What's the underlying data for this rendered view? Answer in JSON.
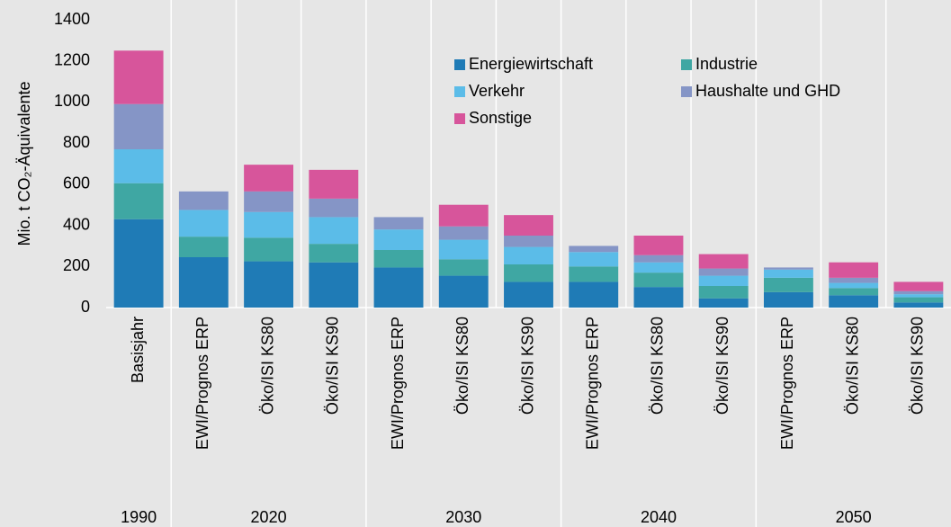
{
  "chart_data": {
    "type": "stacked_bar",
    "ylabel": "Mio. t CO₂-Äquivalente",
    "ylim": [
      0,
      1400
    ],
    "yticks": [
      0,
      200,
      400,
      600,
      800,
      1000,
      1200,
      1400
    ],
    "groups": [
      {
        "label": "1990",
        "categories": [
          "Basisjahr"
        ]
      },
      {
        "label": "2020",
        "categories": [
          "EWI/Prognos ERP",
          "Öko/ISI KS80",
          "Öko/ISI KS90"
        ]
      },
      {
        "label": "2030",
        "categories": [
          "EWI/Prognos ERP",
          "Öko/ISI KS80",
          "Öko/ISI KS90"
        ]
      },
      {
        "label": "2040",
        "categories": [
          "EWI/Prognos ERP",
          "Öko/ISI KS80",
          "Öko/ISI KS90"
        ]
      },
      {
        "label": "2050",
        "categories": [
          "EWI/Prognos ERP",
          "Öko/ISI KS80",
          "Öko/ISI KS90"
        ]
      }
    ],
    "series": [
      {
        "name": "Energiewirtschaft",
        "color": "#1f7bb6",
        "values": [
          430,
          245,
          225,
          220,
          195,
          155,
          125,
          125,
          100,
          45,
          75,
          60,
          25
        ]
      },
      {
        "name": "Industrie",
        "color": "#3fa7a3",
        "values": [
          175,
          100,
          115,
          90,
          85,
          80,
          85,
          75,
          70,
          60,
          70,
          35,
          25
        ]
      },
      {
        "name": "Verkehr",
        "color": "#5bbce8",
        "values": [
          165,
          130,
          125,
          130,
          100,
          95,
          85,
          70,
          50,
          50,
          40,
          25,
          15
        ]
      },
      {
        "name": "Haushalte und GHD",
        "color": "#8595c6",
        "values": [
          220,
          90,
          100,
          90,
          60,
          65,
          55,
          30,
          35,
          35,
          10,
          25,
          15
        ]
      },
      {
        "name": "Sonstige",
        "color": "#d7559b",
        "values": [
          260,
          0,
          130,
          140,
          0,
          105,
          100,
          0,
          95,
          70,
          0,
          75,
          45
        ]
      }
    ]
  }
}
